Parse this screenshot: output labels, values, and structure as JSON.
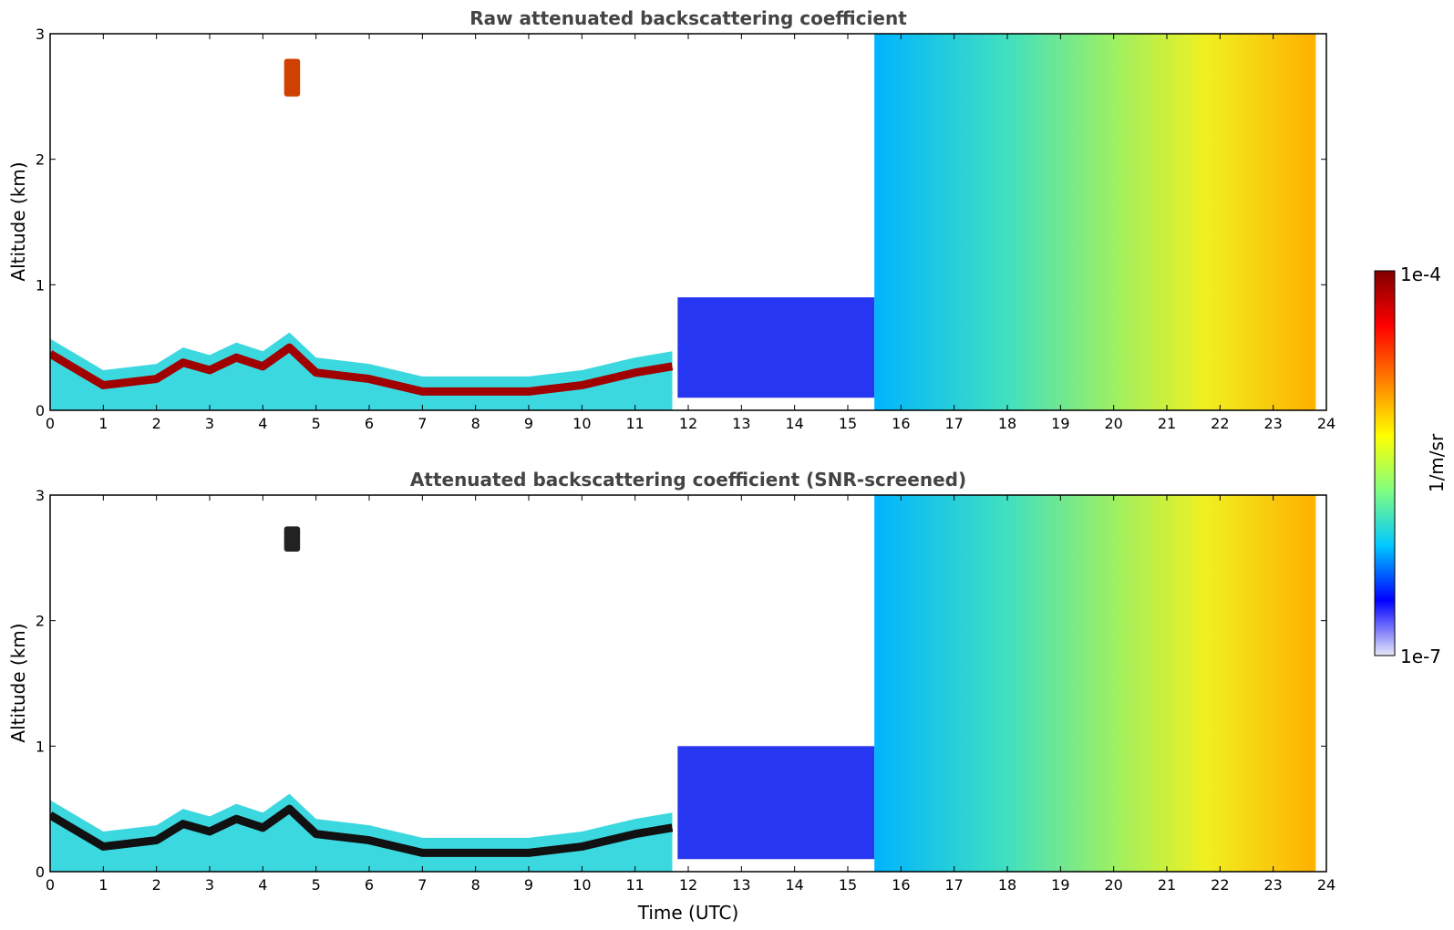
{
  "chart_data": [
    {
      "type": "heatmap",
      "title": "Raw attenuated backscattering coefficient",
      "xlabel": "",
      "ylabel": "Altitude (km)",
      "xlim": [
        0,
        24
      ],
      "ylim": [
        0,
        3
      ],
      "xticks": [
        "0",
        "1",
        "2",
        "3",
        "4",
        "5",
        "6",
        "7",
        "8",
        "9",
        "10",
        "11",
        "12",
        "13",
        "14",
        "15",
        "16",
        "17",
        "18",
        "19",
        "20",
        "21",
        "22",
        "23",
        "24"
      ],
      "yticks": [
        "0",
        "1",
        "2",
        "3"
      ],
      "boundary_layer_top_km": {
        "x": [
          0,
          1,
          2,
          2.5,
          3,
          3.5,
          4,
          4.5,
          5,
          6,
          7,
          8,
          9,
          10,
          11,
          11.7
        ],
        "y": [
          0.45,
          0.2,
          0.25,
          0.38,
          0.32,
          0.42,
          0.35,
          0.5,
          0.3,
          0.25,
          0.15,
          0.15,
          0.15,
          0.2,
          0.3,
          0.35
        ]
      },
      "features": [
        {
          "name": "elevated layer",
          "time_range": [
            4.4,
            4.7
          ],
          "altitude_km": [
            2.5,
            2.8
          ]
        },
        {
          "name": "aerosol plume",
          "time_range": [
            11.8,
            15.5
          ],
          "altitude_km": [
            0.1,
            0.9
          ]
        },
        {
          "name": "cloud region",
          "time_range": [
            15.5,
            23.8
          ],
          "altitude_km": [
            0,
            3
          ]
        }
      ]
    },
    {
      "type": "heatmap",
      "title": "Attenuated backscattering coefficient (SNR-screened)",
      "xlabel": "Time (UTC)",
      "ylabel": "Altitude (km)",
      "xlim": [
        0,
        24
      ],
      "ylim": [
        0,
        3
      ],
      "xticks": [
        "0",
        "1",
        "2",
        "3",
        "4",
        "5",
        "6",
        "7",
        "8",
        "9",
        "10",
        "11",
        "12",
        "13",
        "14",
        "15",
        "16",
        "17",
        "18",
        "19",
        "20",
        "21",
        "22",
        "23",
        "24"
      ],
      "yticks": [
        "0",
        "1",
        "2",
        "3"
      ],
      "boundary_layer_top_km": {
        "x": [
          0,
          1,
          2,
          2.5,
          3,
          3.5,
          4,
          4.5,
          5,
          6,
          7,
          8,
          9,
          10,
          11,
          11.7
        ],
        "y": [
          0.45,
          0.2,
          0.25,
          0.38,
          0.32,
          0.42,
          0.35,
          0.5,
          0.3,
          0.25,
          0.15,
          0.15,
          0.15,
          0.2,
          0.3,
          0.35
        ]
      },
      "features": [
        {
          "name": "elevated layer",
          "time_range": [
            4.4,
            4.7
          ],
          "altitude_km": [
            2.55,
            2.75
          ]
        },
        {
          "name": "aerosol plume",
          "time_range": [
            11.8,
            15.5
          ],
          "altitude_km": [
            0.1,
            1.0
          ]
        },
        {
          "name": "cloud region",
          "time_range": [
            15.5,
            23.8
          ],
          "altitude_km": [
            0,
            3
          ]
        }
      ]
    }
  ],
  "colorbar": {
    "label": "1/m/sr",
    "max_label": "1e-4",
    "min_label": "1e-7",
    "scale": "log",
    "stops": [
      "#e8e8f8",
      "#0000ff",
      "#00c8ff",
      "#80ff80",
      "#ffff00",
      "#ff8000",
      "#ff0000",
      "#800000"
    ]
  }
}
